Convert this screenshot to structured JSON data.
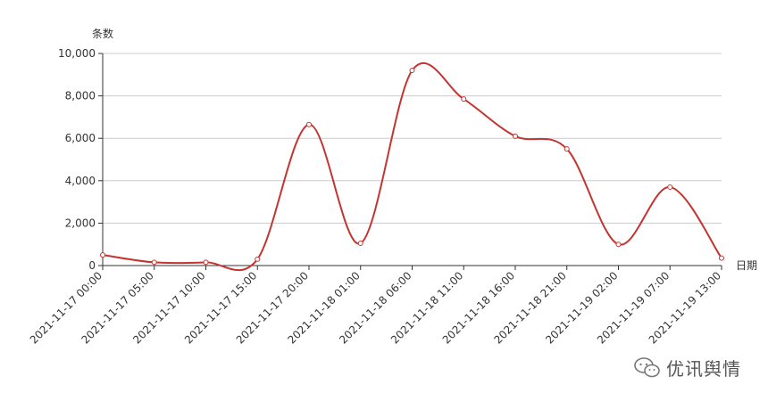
{
  "chart_data": {
    "type": "line",
    "title": "",
    "xlabel": "日期",
    "ylabel": "条数",
    "x": [
      "2021-11-17 00:00",
      "2021-11-17 05:00",
      "2021-11-17 10:00",
      "2021-11-17 15:00",
      "2021-11-17 20:00",
      "2021-11-18 01:00",
      "2021-11-18 06:00",
      "2021-11-18 11:00",
      "2021-11-18 16:00",
      "2021-11-18 21:00",
      "2021-11-19 02:00",
      "2021-11-19 07:00",
      "2021-11-19 13:00"
    ],
    "series": [
      {
        "values": [
          500,
          150,
          150,
          300,
          6650,
          1050,
          9200,
          7850,
          6100,
          5500,
          1000,
          3700,
          350
        ],
        "color": "#c23531"
      }
    ],
    "ylim": [
      0,
      10000
    ],
    "yticks": [
      0,
      2000,
      4000,
      6000,
      8000,
      10000
    ],
    "ytick_labels": [
      "0",
      "2,000",
      "4,000",
      "6,000",
      "8,000",
      "10,000"
    ],
    "grid": true,
    "smooth": true
  },
  "watermark": {
    "text": "优讯舆情",
    "icon": "wechat-icon"
  }
}
